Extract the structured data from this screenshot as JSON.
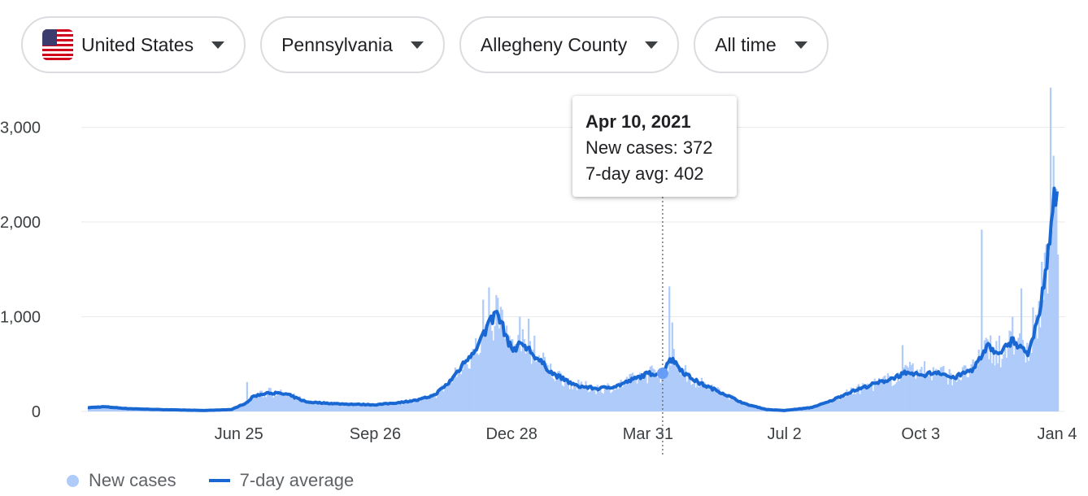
{
  "filters": [
    {
      "label": "United States",
      "icon": "us-flag-icon"
    },
    {
      "label": "Pennsylvania"
    },
    {
      "label": "Allegheny County"
    },
    {
      "label": "All time"
    }
  ],
  "tooltip": {
    "date": "Apr 10, 2021",
    "new_cases": "New cases: 372",
    "avg": "7-day avg: 402"
  },
  "legend": {
    "new_cases": "New cases",
    "avg": "7-day average"
  },
  "colors": {
    "bars": "#aecbfa",
    "line": "#1967d2",
    "grid": "#e8eaed"
  },
  "chart_data": {
    "type": "bar",
    "title": "",
    "xlabel": "",
    "ylabel": "",
    "ylim": [
      0,
      3400
    ],
    "yticks": [
      0,
      1000,
      2000,
      3000
    ],
    "ytick_labels": [
      "0",
      "1,000",
      "2,000",
      "3,000"
    ],
    "x_range": [
      "2020-03-14",
      "2022-01-04"
    ],
    "xticks": [
      {
        "date": "2020-06-25",
        "label": "Jun 25"
      },
      {
        "date": "2020-09-26",
        "label": "Sep 26"
      },
      {
        "date": "2020-12-28",
        "label": "Dec 28"
      },
      {
        "date": "2021-03-31",
        "label": "Mar 31"
      },
      {
        "date": "2021-07-02",
        "label": "Jul 2"
      },
      {
        "date": "2021-10-03",
        "label": "Oct 3"
      },
      {
        "date": "2022-01-04",
        "label": "Jan 4"
      }
    ],
    "highlight": {
      "date": "2021-04-10",
      "new_cases": 372,
      "avg": 402
    },
    "series": [
      {
        "name": "7-day average",
        "points": [
          [
            "2020-03-14",
            40
          ],
          [
            "2020-03-25",
            50
          ],
          [
            "2020-04-10",
            30
          ],
          [
            "2020-05-01",
            20
          ],
          [
            "2020-06-01",
            10
          ],
          [
            "2020-06-20",
            20
          ],
          [
            "2020-06-30",
            90
          ],
          [
            "2020-07-05",
            160
          ],
          [
            "2020-07-15",
            200
          ],
          [
            "2020-07-28",
            180
          ],
          [
            "2020-08-10",
            100
          ],
          [
            "2020-09-01",
            80
          ],
          [
            "2020-09-26",
            70
          ],
          [
            "2020-10-10",
            90
          ],
          [
            "2020-10-25",
            120
          ],
          [
            "2020-11-05",
            170
          ],
          [
            "2020-11-15",
            300
          ],
          [
            "2020-11-25",
            500
          ],
          [
            "2020-12-05",
            700
          ],
          [
            "2020-12-12",
            900
          ],
          [
            "2020-12-18",
            1050
          ],
          [
            "2020-12-28",
            650
          ],
          [
            "2021-01-05",
            720
          ],
          [
            "2021-01-12",
            600
          ],
          [
            "2021-01-25",
            400
          ],
          [
            "2021-02-10",
            270
          ],
          [
            "2021-02-25",
            240
          ],
          [
            "2021-03-10",
            270
          ],
          [
            "2021-03-31",
            400
          ],
          [
            "2021-04-10",
            402
          ],
          [
            "2021-04-14",
            550
          ],
          [
            "2021-04-18",
            530
          ],
          [
            "2021-04-25",
            400
          ],
          [
            "2021-05-05",
            300
          ],
          [
            "2021-05-20",
            200
          ],
          [
            "2021-06-05",
            80
          ],
          [
            "2021-06-20",
            20
          ],
          [
            "2021-07-02",
            10
          ],
          [
            "2021-07-20",
            40
          ],
          [
            "2021-08-01",
            100
          ],
          [
            "2021-08-15",
            200
          ],
          [
            "2021-08-30",
            280
          ],
          [
            "2021-09-10",
            330
          ],
          [
            "2021-09-25",
            420
          ],
          [
            "2021-10-03",
            380
          ],
          [
            "2021-10-15",
            420
          ],
          [
            "2021-10-25",
            350
          ],
          [
            "2021-11-08",
            450
          ],
          [
            "2021-11-18",
            700
          ],
          [
            "2021-11-25",
            600
          ],
          [
            "2021-12-05",
            750
          ],
          [
            "2021-12-15",
            600
          ],
          [
            "2021-12-22",
            950
          ],
          [
            "2021-12-28",
            1600
          ],
          [
            "2022-01-02",
            2300
          ],
          [
            "2022-01-04",
            2200
          ]
        ]
      },
      {
        "name": "New cases",
        "spikes": [
          [
            "2020-06-30",
            310
          ],
          [
            "2020-07-15",
            250
          ],
          [
            "2020-11-25",
            520
          ],
          [
            "2020-12-08",
            1180
          ],
          [
            "2020-12-12",
            1310
          ],
          [
            "2020-12-18",
            1200
          ],
          [
            "2021-01-02",
            1000
          ],
          [
            "2021-01-08",
            980
          ],
          [
            "2021-01-12",
            800
          ],
          [
            "2021-04-14",
            1320
          ],
          [
            "2021-04-16",
            940
          ],
          [
            "2021-09-20",
            700
          ],
          [
            "2021-10-05",
            530
          ],
          [
            "2021-11-13",
            1920
          ],
          [
            "2021-11-25",
            800
          ],
          [
            "2021-12-04",
            1000
          ],
          [
            "2021-12-10",
            1300
          ],
          [
            "2021-12-18",
            1100
          ],
          [
            "2021-12-24",
            1580
          ],
          [
            "2021-12-30",
            3420
          ],
          [
            "2022-01-01",
            2700
          ],
          [
            "2022-01-03",
            2350
          ]
        ]
      }
    ]
  }
}
